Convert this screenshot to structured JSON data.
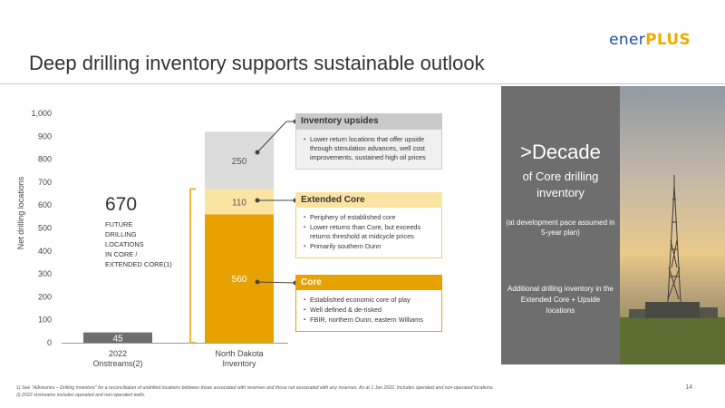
{
  "header": {
    "title": "Deep drilling inventory supports sustainable outlook",
    "logo_part1": "ener",
    "logo_part2": "PLUS"
  },
  "chart_data": {
    "type": "bar",
    "ylabel": "Net drilling locations",
    "ylim": [
      0,
      1000
    ],
    "yticks": [
      "0",
      "100",
      "200",
      "300",
      "400",
      "500",
      "600",
      "700",
      "800",
      "900",
      "1,000"
    ],
    "categories": [
      "2022 Onstreams",
      "North Dakota Inventory"
    ],
    "category_lines": [
      [
        "2022",
        "Onstreams(2)"
      ],
      [
        "North Dakota",
        "Inventory"
      ]
    ],
    "bars": [
      {
        "category": "2022 Onstreams",
        "segments": [
          {
            "value": 45,
            "label": "45",
            "color": "#6e6e6e",
            "label_color": "#ffffff"
          }
        ]
      },
      {
        "category": "North Dakota Inventory",
        "segments": [
          {
            "value": 560,
            "label": "560",
            "color": "#e8a200",
            "label_color": "#ffffff"
          },
          {
            "value": 110,
            "label": "110",
            "color": "#fbe3a1",
            "label_color": "#555555"
          },
          {
            "value": 250,
            "label": "250",
            "color": "#dcdcdc",
            "label_color": "#555555"
          }
        ]
      }
    ],
    "grid": false
  },
  "annotation": {
    "big_number": "670",
    "lines": [
      "FUTURE",
      "DRILLING",
      "LOCATIONS",
      "IN CORE /",
      "EXTENDED CORE(1)"
    ]
  },
  "callouts": {
    "upsides": {
      "title": "Inventory upsides",
      "bullets": [
        "Lower return locations that offer upside through stimulation advances, well cost improvements, sustained high oil prices"
      ]
    },
    "extended": {
      "title": "Extended Core",
      "bullets": [
        "Periphery of established core",
        "Lower returns than Core, but exceeds returns threshold at midcycle prices",
        "Primarily southern Dunn"
      ]
    },
    "core": {
      "title": "Core",
      "bullets": [
        "Established economic core of play",
        "Well defined & de-risked",
        "FBIR, northern Dunn, eastern Williams"
      ]
    }
  },
  "side_panel": {
    "decade": ">Decade",
    "decade_sub": "of Core drilling inventory",
    "pace": "(at development pace assumed in 5-year plan)",
    "additional": "Additional drilling inventory in the Extended Core + Upside locations"
  },
  "footer": {
    "footnote1": "1)  See \"Advisories – Drilling Inventory\" for a reconciliation of undrilled locations between those associated with reserves and those not associated with any reserves.  As at 1 Jan 2022. Includes operated and non-operated locations.",
    "footnote2": "2)  2022 onstreams includes operated and non-operated wells.",
    "page": "14"
  },
  "colors": {
    "core": "#e8a200",
    "extended": "#fbe3a1",
    "upside": "#dcdcdc",
    "onstream": "#6e6e6e",
    "brand_blue": "#1f4fa0",
    "brand_yellow": "#f0ad00"
  }
}
